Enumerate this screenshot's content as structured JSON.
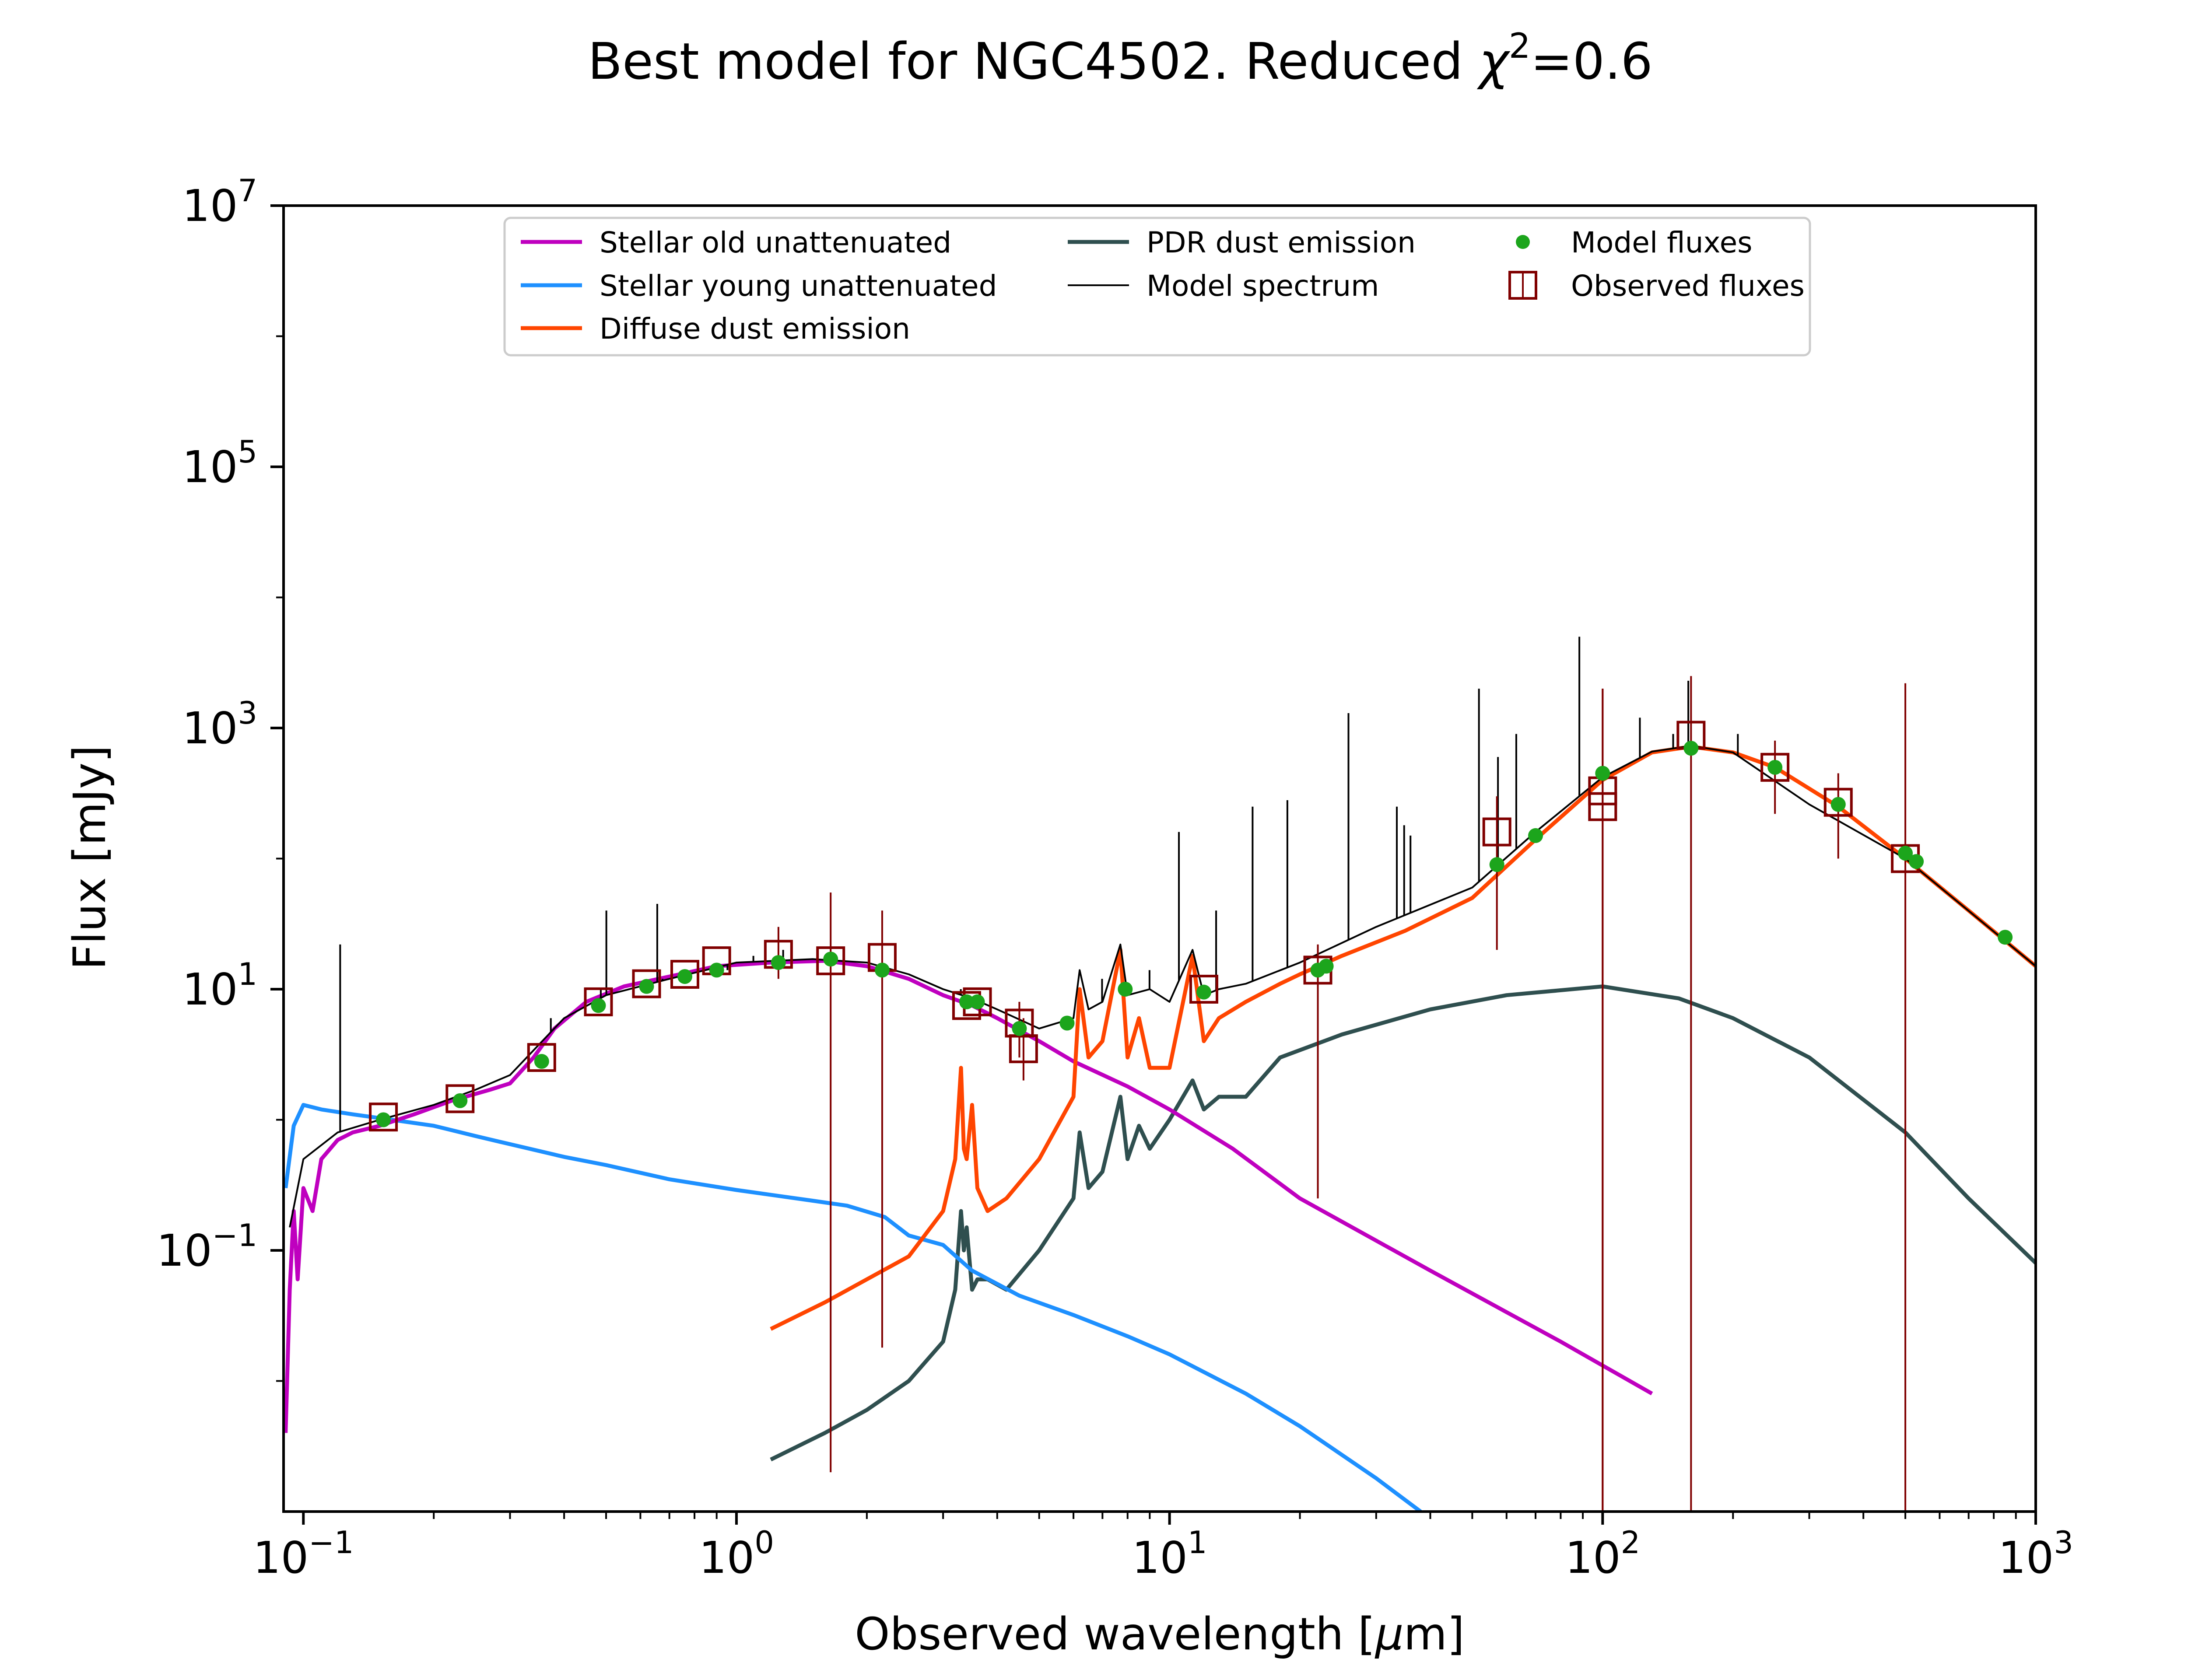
{
  "chart_data": {
    "type": "line",
    "title_prefix": "Best model for NGC4502. Reduced ",
    "title_chi": "χ",
    "title_exp": "2",
    "title_suffix": "=0.6",
    "xlabel_prefix": "Observed wavelength [",
    "xlabel_mu": "μ",
    "xlabel_suffix": "m]",
    "ylabel": "Flux [mJy]",
    "xscale": "log",
    "yscale": "log",
    "xlim": [
      0.09,
      1000
    ],
    "ylim": [
      0.001,
      10000000
    ],
    "xticks": [
      {
        "value": 0.1,
        "base": "10",
        "exp": "−1"
      },
      {
        "value": 1,
        "base": "10",
        "exp": "0"
      },
      {
        "value": 10,
        "base": "10",
        "exp": "1"
      },
      {
        "value": 100,
        "base": "10",
        "exp": "2"
      },
      {
        "value": 1000,
        "base": "10",
        "exp": "3"
      }
    ],
    "yticks": [
      {
        "value": 0.1,
        "base": "10",
        "exp": "−1"
      },
      {
        "value": 10,
        "base": "10",
        "exp": "1"
      },
      {
        "value": 1000,
        "base": "10",
        "exp": "3"
      },
      {
        "value": 100000,
        "base": "10",
        "exp": "5"
      },
      {
        "value": 10000000,
        "base": "10",
        "exp": "7"
      }
    ],
    "grid": false,
    "legend_position": "top-center",
    "series": [
      {
        "name": "Stellar old unattenuated",
        "color": "#bf00bf",
        "kind": "line",
        "x": [
          0.091,
          0.093,
          0.095,
          0.097,
          0.1,
          0.105,
          0.11,
          0.12,
          0.13,
          0.15,
          0.18,
          0.22,
          0.27,
          0.3,
          0.34,
          0.38,
          0.45,
          0.55,
          0.7,
          0.9,
          1.2,
          1.6,
          2.0,
          2.5,
          3.0,
          3.5,
          4.0,
          5.0,
          6.0,
          8.0,
          10,
          14,
          20,
          40,
          80,
          130
        ],
        "y": [
          0.004,
          0.05,
          0.2,
          0.06,
          0.3,
          0.2,
          0.5,
          0.7,
          0.8,
          0.9,
          1.1,
          1.4,
          1.7,
          1.9,
          3.0,
          5.0,
          8.0,
          10.5,
          12.5,
          15.0,
          16.0,
          16.5,
          15.0,
          12.0,
          9.0,
          7.5,
          6.0,
          4.0,
          2.8,
          1.8,
          1.2,
          0.6,
          0.25,
          0.07,
          0.02,
          0.008
        ]
      },
      {
        "name": "Stellar young unattenuated",
        "color": "#1e90ff",
        "kind": "line",
        "x": [
          0.091,
          0.095,
          0.1,
          0.11,
          0.13,
          0.16,
          0.2,
          0.25,
          0.3,
          0.4,
          0.5,
          0.7,
          1.0,
          1.5,
          1.8,
          2.2,
          2.5,
          3.0,
          3.5,
          4.5,
          6.0,
          8.0,
          10,
          15,
          20,
          30,
          38
        ],
        "y": [
          0.3,
          0.9,
          1.3,
          1.2,
          1.1,
          1.0,
          0.9,
          0.75,
          0.65,
          0.52,
          0.45,
          0.35,
          0.29,
          0.24,
          0.22,
          0.18,
          0.13,
          0.11,
          0.07,
          0.045,
          0.032,
          0.022,
          0.016,
          0.008,
          0.0045,
          0.0018,
          0.001
        ]
      },
      {
        "name": "Diffuse dust emission",
        "color": "#ff4500",
        "kind": "line",
        "x": [
          1.2,
          1.6,
          2.0,
          2.5,
          3.0,
          3.2,
          3.3,
          3.35,
          3.4,
          3.5,
          3.6,
          3.8,
          4.2,
          5.0,
          6.0,
          6.2,
          6.5,
          7.0,
          7.7,
          8.0,
          8.5,
          9.0,
          10,
          11.3,
          12,
          13,
          15,
          18,
          20,
          25,
          35,
          50,
          70,
          100,
          130,
          160,
          200,
          250,
          350,
          500,
          700,
          1000
        ],
        "y": [
          0.025,
          0.04,
          0.06,
          0.09,
          0.2,
          0.5,
          2.5,
          0.6,
          0.5,
          1.3,
          0.3,
          0.2,
          0.25,
          0.5,
          1.5,
          10.0,
          3.0,
          4.0,
          20.0,
          3.0,
          6.0,
          2.5,
          2.5,
          18.0,
          4.0,
          6.0,
          8.0,
          11.0,
          13.0,
          18.0,
          28.0,
          50.0,
          140.0,
          400.0,
          650.0,
          720.0,
          650.0,
          500.0,
          250.0,
          100.0,
          40.0,
          15.0
        ]
      },
      {
        "name": "PDR dust emission",
        "color": "#2f4f4f",
        "kind": "line",
        "x": [
          1.2,
          1.6,
          2.0,
          2.5,
          3.0,
          3.2,
          3.3,
          3.35,
          3.4,
          3.5,
          3.6,
          3.8,
          4.2,
          5.0,
          6.0,
          6.2,
          6.5,
          7.0,
          7.7,
          8.0,
          8.5,
          9.0,
          10,
          11.3,
          12,
          13,
          15,
          18,
          25,
          40,
          60,
          100,
          150,
          200,
          300,
          500,
          700,
          1000
        ],
        "y": [
          0.0025,
          0.004,
          0.006,
          0.01,
          0.02,
          0.05,
          0.2,
          0.1,
          0.15,
          0.05,
          0.06,
          0.06,
          0.05,
          0.1,
          0.25,
          0.8,
          0.3,
          0.4,
          1.5,
          0.5,
          0.9,
          0.6,
          1.0,
          2.0,
          1.2,
          1.5,
          1.5,
          3.0,
          4.5,
          7.0,
          9.0,
          10.5,
          8.5,
          6.0,
          3.0,
          0.8,
          0.25,
          0.08
        ]
      },
      {
        "name": "Model spectrum",
        "color": "#000000",
        "kind": "line",
        "x": [
          0.093,
          0.1,
          0.12,
          0.15,
          0.2,
          0.25,
          0.3,
          0.4,
          0.5,
          0.7,
          1.0,
          1.5,
          2.0,
          2.5,
          3.0,
          3.5,
          4.0,
          5.0,
          6.0,
          6.2,
          6.5,
          7.0,
          7.7,
          8.0,
          9.0,
          10,
          11.3,
          12,
          13,
          15,
          20,
          30,
          50,
          70,
          100,
          130,
          160,
          200,
          300,
          500,
          1000
        ],
        "y": [
          0.15,
          0.5,
          0.8,
          1.0,
          1.3,
          1.7,
          2.2,
          6.0,
          9.0,
          12.0,
          16.0,
          17.0,
          16.0,
          13.0,
          10.0,
          8.5,
          7.0,
          5.0,
          6.0,
          14.0,
          7.0,
          8.0,
          22.0,
          9.0,
          10.0,
          8.0,
          20.0,
          9.0,
          10.0,
          11.0,
          16.0,
          30.0,
          60.0,
          160.0,
          420.0,
          660.0,
          730.0,
          650.0,
          260.0,
          100.0,
          15.0
        ]
      },
      {
        "name": "Model fluxes",
        "color": "#1ca51c",
        "kind": "points",
        "x": [
          0.153,
          0.23,
          0.355,
          0.48,
          0.62,
          0.76,
          0.9,
          1.25,
          1.65,
          2.17,
          3.4,
          3.6,
          4.5,
          5.8,
          7.9,
          12,
          22,
          23,
          57,
          70,
          100,
          160,
          250,
          350,
          500,
          530,
          850
        ],
        "y": [
          1.0,
          1.4,
          2.8,
          7.5,
          10.5,
          12.5,
          14.0,
          16.0,
          17.0,
          14.0,
          8.0,
          8.0,
          5.0,
          5.5,
          10.0,
          9.5,
          14.0,
          15.0,
          90.0,
          150.0,
          450.0,
          700.0,
          500.0,
          260.0,
          110.0,
          95.0,
          25.0
        ]
      },
      {
        "name": "Observed fluxes",
        "color": "#800000",
        "kind": "squares",
        "x": [
          0.153,
          0.23,
          0.355,
          0.48,
          0.62,
          0.76,
          0.9,
          1.25,
          1.65,
          2.17,
          3.4,
          3.6,
          4.5,
          4.6,
          12,
          22,
          57,
          100,
          100,
          160,
          250,
          350,
          500
        ],
        "y": [
          1.05,
          1.45,
          3.0,
          8.0,
          11.0,
          13.0,
          16.5,
          18.5,
          16.5,
          17.5,
          7.5,
          8.0,
          5.5,
          3.5,
          10.0,
          14.0,
          160.0,
          250.0,
          330.0,
          880.0,
          500.0,
          270.0,
          100.0
        ],
        "err_lo": [
          null,
          null,
          null,
          null,
          null,
          null,
          null,
          12.0,
          0.002,
          0.018,
          null,
          null,
          3.0,
          2.0,
          null,
          0.25,
          20.0,
          0.001,
          0.001,
          0.001,
          220.0,
          100.0,
          0.001
        ],
        "err_hi": [
          null,
          null,
          null,
          null,
          null,
          null,
          null,
          30.0,
          55.0,
          40.0,
          null,
          null,
          8.0,
          6.0,
          null,
          22.0,
          300.0,
          2000.0,
          2000.0,
          2500.0,
          800.0,
          450.0,
          2200.0
        ]
      }
    ],
    "spectral_lines": {
      "x": [
        0.1216,
        0.3727,
        0.4861,
        0.5007,
        0.6563,
        0.675,
        0.9531,
        1.0941,
        1.2818,
        1.8751,
        3.296,
        6.985,
        8.99,
        10.51,
        12.81,
        15.55,
        18.71,
        25.89,
        33.48,
        34.81,
        36.0,
        51.81,
        57.32,
        63.18,
        88.36,
        121.9,
        145.5,
        157.7,
        205.2
      ],
      "y": [
        22.0,
        6.0,
        10.0,
        40.0,
        45.0,
        12.0,
        14.0,
        18.0,
        20.0,
        16.0,
        10.0,
        12.0,
        14.0,
        160.0,
        40.0,
        250.0,
        280.0,
        1300.0,
        250.0,
        180.0,
        150.0,
        2000.0,
        600.0,
        900.0,
        5000.0,
        1200.0,
        900.0,
        2300.0,
        900.0
      ]
    }
  }
}
